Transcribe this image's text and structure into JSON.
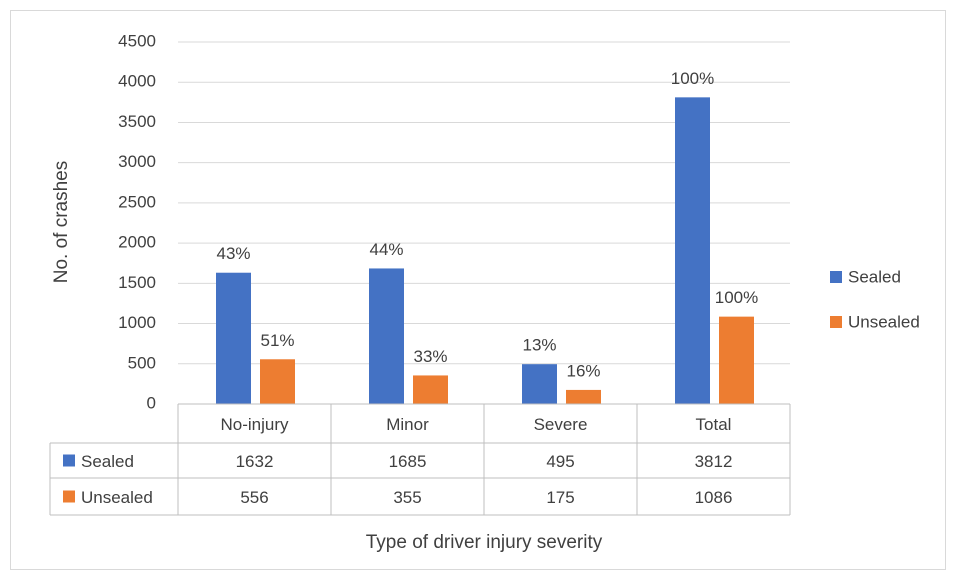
{
  "chart_data": {
    "type": "bar",
    "x_label": "Type of driver injury severity",
    "y_label": "No. of crashes",
    "categories": [
      "No-injury",
      "Minor",
      "Severe",
      "Total"
    ],
    "series": [
      {
        "name": "Sealed",
        "color": "#4472c4",
        "values": [
          1632,
          1685,
          495,
          3812
        ],
        "share_labels": [
          "43%",
          "44%",
          "13%",
          "100%"
        ]
      },
      {
        "name": "Unsealed",
        "color": "#ed7d31",
        "values": [
          556,
          355,
          175,
          1086
        ],
        "share_labels": [
          "51%",
          "33%",
          "16%",
          "100%"
        ]
      }
    ],
    "ylim": [
      0,
      4500
    ],
    "yticks": [
      0,
      500,
      1000,
      1500,
      2000,
      2500,
      3000,
      3500,
      4000,
      4500
    ],
    "grid": true,
    "legend": "right",
    "data_table": true
  }
}
